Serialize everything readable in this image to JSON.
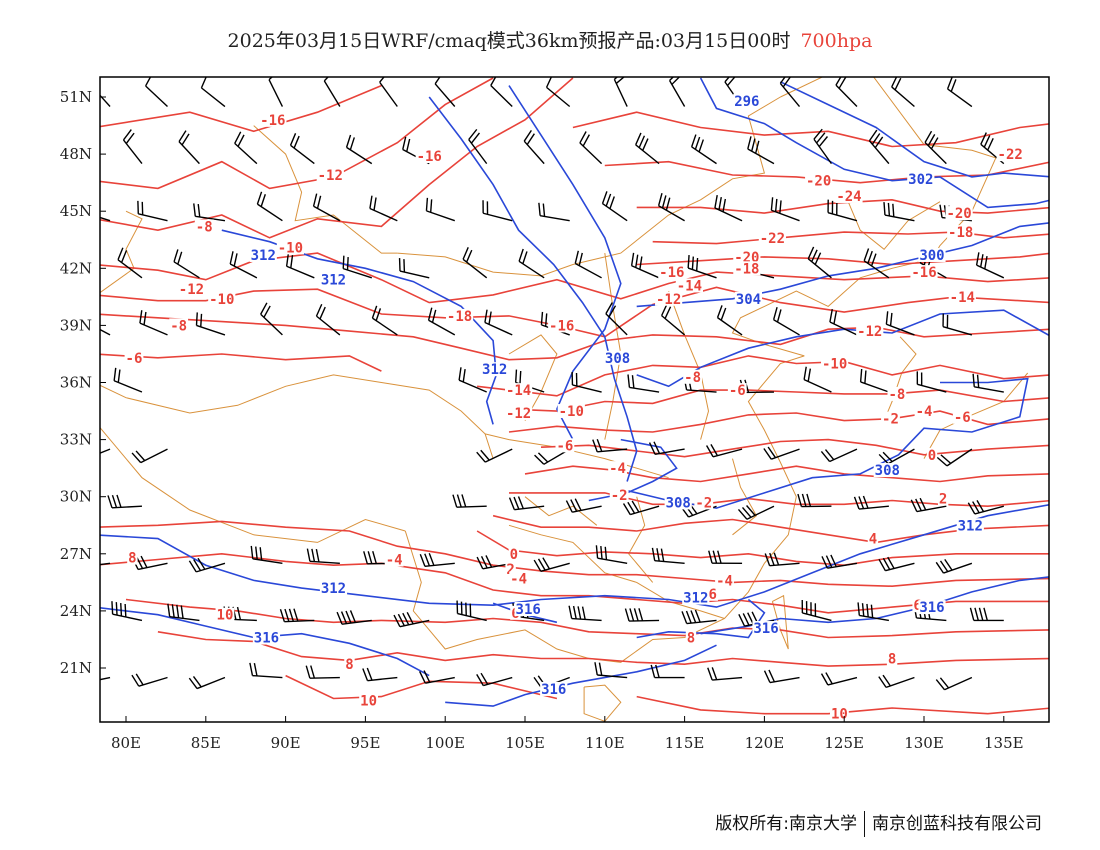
{
  "title": {
    "main": "2025年03月15日WRF/cmaq模式36km预报产品:03月15日00时",
    "level": "700hpa"
  },
  "colors": {
    "temperature": "#e8433a",
    "height": "#2a48d8",
    "border": "#d9923c",
    "wind": "#000000"
  },
  "axes": {
    "lon_labels": [
      "80E",
      "85E",
      "90E",
      "95E",
      "100E",
      "105E",
      "110E",
      "115E",
      "120E",
      "125E",
      "130E",
      "135E"
    ],
    "lat_labels": [
      "51N",
      "48N",
      "45N",
      "42N",
      "39N",
      "36N",
      "33N",
      "30N",
      "27N",
      "24N",
      "21N"
    ]
  },
  "temperature_labels": [
    {
      "text": "-16",
      "lon": 89.2,
      "lat": 49.8
    },
    {
      "text": "-16",
      "lon": 99.0,
      "lat": 47.9
    },
    {
      "text": "-12",
      "lon": 92.8,
      "lat": 46.9
    },
    {
      "text": "-8",
      "lon": 84.9,
      "lat": 44.2
    },
    {
      "text": "-10",
      "lon": 90.3,
      "lat": 43.1
    },
    {
      "text": "-12",
      "lon": 84.1,
      "lat": 40.9
    },
    {
      "text": "-10",
      "lon": 86.0,
      "lat": 40.4
    },
    {
      "text": "-8",
      "lon": 83.3,
      "lat": 39.0
    },
    {
      "text": "-6",
      "lon": 80.5,
      "lat": 37.3
    },
    {
      "text": "-18",
      "lon": 100.9,
      "lat": 39.5
    },
    {
      "text": "-16",
      "lon": 107.3,
      "lat": 39.0
    },
    {
      "text": "-20",
      "lon": 123.4,
      "lat": 46.6
    },
    {
      "text": "-24",
      "lon": 125.3,
      "lat": 45.8
    },
    {
      "text": "-22",
      "lon": 135.4,
      "lat": 48.0
    },
    {
      "text": "-20",
      "lon": 132.2,
      "lat": 44.9
    },
    {
      "text": "-18",
      "lon": 132.3,
      "lat": 43.9
    },
    {
      "text": "-22",
      "lon": 120.5,
      "lat": 43.6
    },
    {
      "text": "-20",
      "lon": 118.9,
      "lat": 42.6
    },
    {
      "text": "-18",
      "lon": 118.9,
      "lat": 42.0
    },
    {
      "text": "-16",
      "lon": 114.2,
      "lat": 41.8
    },
    {
      "text": "-16",
      "lon": 130.0,
      "lat": 41.8
    },
    {
      "text": "-14",
      "lon": 115.3,
      "lat": 41.1
    },
    {
      "text": "-12",
      "lon": 114.0,
      "lat": 40.4
    },
    {
      "text": "-14",
      "lon": 132.4,
      "lat": 40.5
    },
    {
      "text": "-12",
      "lon": 126.6,
      "lat": 38.7
    },
    {
      "text": "-10",
      "lon": 124.4,
      "lat": 37.0
    },
    {
      "text": "-14",
      "lon": 104.6,
      "lat": 35.6
    },
    {
      "text": "-12",
      "lon": 104.6,
      "lat": 34.4
    },
    {
      "text": "-10",
      "lon": 107.9,
      "lat": 34.5
    },
    {
      "text": "-8",
      "lon": 115.5,
      "lat": 36.3
    },
    {
      "text": "-6",
      "lon": 118.3,
      "lat": 35.6
    },
    {
      "text": "-8",
      "lon": 128.3,
      "lat": 35.4
    },
    {
      "text": "-4",
      "lon": 130.0,
      "lat": 34.5
    },
    {
      "text": "-6",
      "lon": 132.4,
      "lat": 34.2
    },
    {
      "text": "-2",
      "lon": 127.9,
      "lat": 34.1
    },
    {
      "text": "-6",
      "lon": 107.5,
      "lat": 32.7
    },
    {
      "text": "-4",
      "lon": 110.8,
      "lat": 31.5
    },
    {
      "text": "-2",
      "lon": 110.9,
      "lat": 30.1
    },
    {
      "text": "0",
      "lon": 130.5,
      "lat": 32.2
    },
    {
      "text": "2",
      "lon": 131.2,
      "lat": 29.9
    },
    {
      "text": "-2",
      "lon": 116.2,
      "lat": 29.7
    },
    {
      "text": "0",
      "lon": 104.3,
      "lat": 27.0
    },
    {
      "text": "2",
      "lon": 104.1,
      "lat": 26.2
    },
    {
      "text": "-4",
      "lon": 104.6,
      "lat": 25.7
    },
    {
      "text": "-4",
      "lon": 96.8,
      "lat": 26.7
    },
    {
      "text": "4",
      "lon": 126.8,
      "lat": 27.8
    },
    {
      "text": "-4",
      "lon": 117.5,
      "lat": 25.6
    },
    {
      "text": "-6",
      "lon": 116.5,
      "lat": 24.9
    },
    {
      "text": "8",
      "lon": 80.4,
      "lat": 26.8
    },
    {
      "text": "6",
      "lon": 104.4,
      "lat": 23.9
    },
    {
      "text": "6",
      "lon": 129.6,
      "lat": 24.3
    },
    {
      "text": "10",
      "lon": 86.2,
      "lat": 23.8
    },
    {
      "text": "8",
      "lon": 115.4,
      "lat": 22.6
    },
    {
      "text": "8",
      "lon": 94.0,
      "lat": 21.2
    },
    {
      "text": "8",
      "lon": 128.0,
      "lat": 21.5
    },
    {
      "text": "10",
      "lon": 95.2,
      "lat": 19.3
    },
    {
      "text": "10",
      "lon": 124.7,
      "lat": 18.6
    }
  ],
  "height_labels": [
    {
      "text": "296",
      "lon": 118.9,
      "lat": 50.8
    },
    {
      "text": "302",
      "lon": 129.8,
      "lat": 46.7
    },
    {
      "text": "300",
      "lon": 130.5,
      "lat": 42.7
    },
    {
      "text": "304",
      "lon": 119.0,
      "lat": 40.4
    },
    {
      "text": "312",
      "lon": 88.6,
      "lat": 42.7
    },
    {
      "text": "312",
      "lon": 93.0,
      "lat": 41.4
    },
    {
      "text": "312",
      "lon": 103.1,
      "lat": 36.7
    },
    {
      "text": "308",
      "lon": 110.8,
      "lat": 37.3
    },
    {
      "text": "308",
      "lon": 127.7,
      "lat": 31.4
    },
    {
      "text": "308",
      "lon": 114.6,
      "lat": 29.7
    },
    {
      "text": "312",
      "lon": 132.9,
      "lat": 28.5
    },
    {
      "text": "312",
      "lon": 93.0,
      "lat": 25.2
    },
    {
      "text": "312",
      "lon": 115.7,
      "lat": 24.7
    },
    {
      "text": "316",
      "lon": 105.2,
      "lat": 24.1
    },
    {
      "text": "316",
      "lon": 130.5,
      "lat": 24.2
    },
    {
      "text": "316",
      "lon": 88.8,
      "lat": 22.6
    },
    {
      "text": "316",
      "lon": 120.1,
      "lat": 23.1
    },
    {
      "text": "316",
      "lon": 106.8,
      "lat": 19.9
    }
  ],
  "credit": {
    "left": "版权所有:南京大学",
    "right": "南京创蓝科技有限公司"
  }
}
